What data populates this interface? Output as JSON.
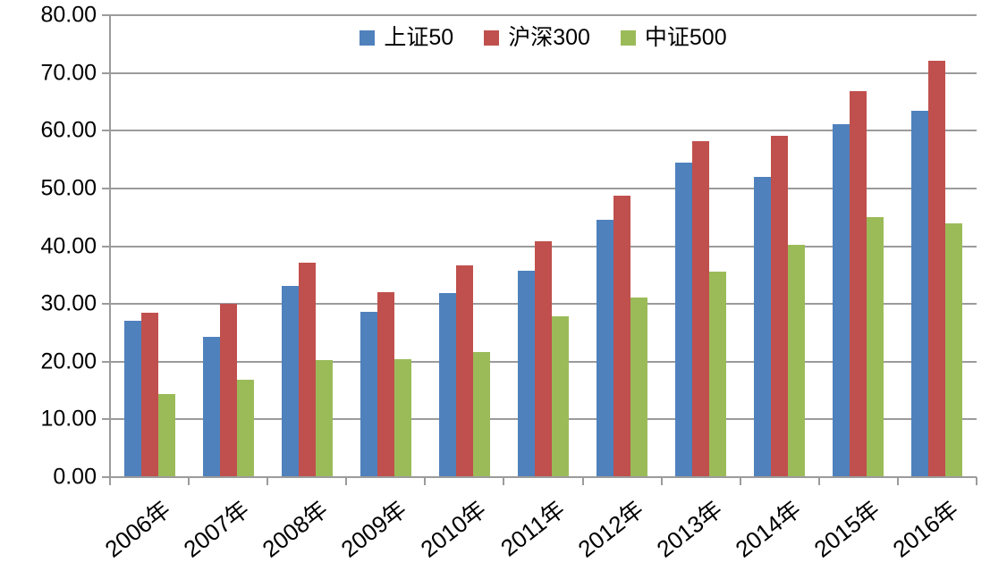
{
  "chart_data": {
    "type": "bar",
    "title": "",
    "categories": [
      "2006年",
      "2007年",
      "2008年",
      "2009年",
      "2010年",
      "2011年",
      "2012年",
      "2013年",
      "2014年",
      "2015年",
      "2016年"
    ],
    "series": [
      {
        "name": "上证50",
        "color": "#4F81BD",
        "values": [
          27.1,
          24.3,
          33.1,
          28.7,
          31.8,
          35.8,
          44.5,
          54.5,
          52.0,
          61.1,
          63.4
        ]
      },
      {
        "name": "沪深300",
        "color": "#C0504D",
        "values": [
          28.5,
          30.0,
          37.2,
          32.0,
          36.7,
          40.9,
          48.7,
          58.2,
          59.1,
          66.8,
          72.1
        ]
      },
      {
        "name": "中证500",
        "color": "#9BBB59",
        "values": [
          14.4,
          16.8,
          20.2,
          20.4,
          21.7,
          27.8,
          31.1,
          35.6,
          40.3,
          45.1,
          44.0
        ]
      }
    ],
    "xlabel": "",
    "ylabel": "",
    "ylim": [
      0,
      80
    ],
    "ytick_step": 10,
    "ytick_labels": [
      "0.00",
      "10.00",
      "20.00",
      "30.00",
      "40.00",
      "50.00",
      "60.00",
      "70.00",
      "80.00"
    ],
    "grid": true,
    "gridline_color": "#9b9b9b",
    "legend_position": "top"
  }
}
